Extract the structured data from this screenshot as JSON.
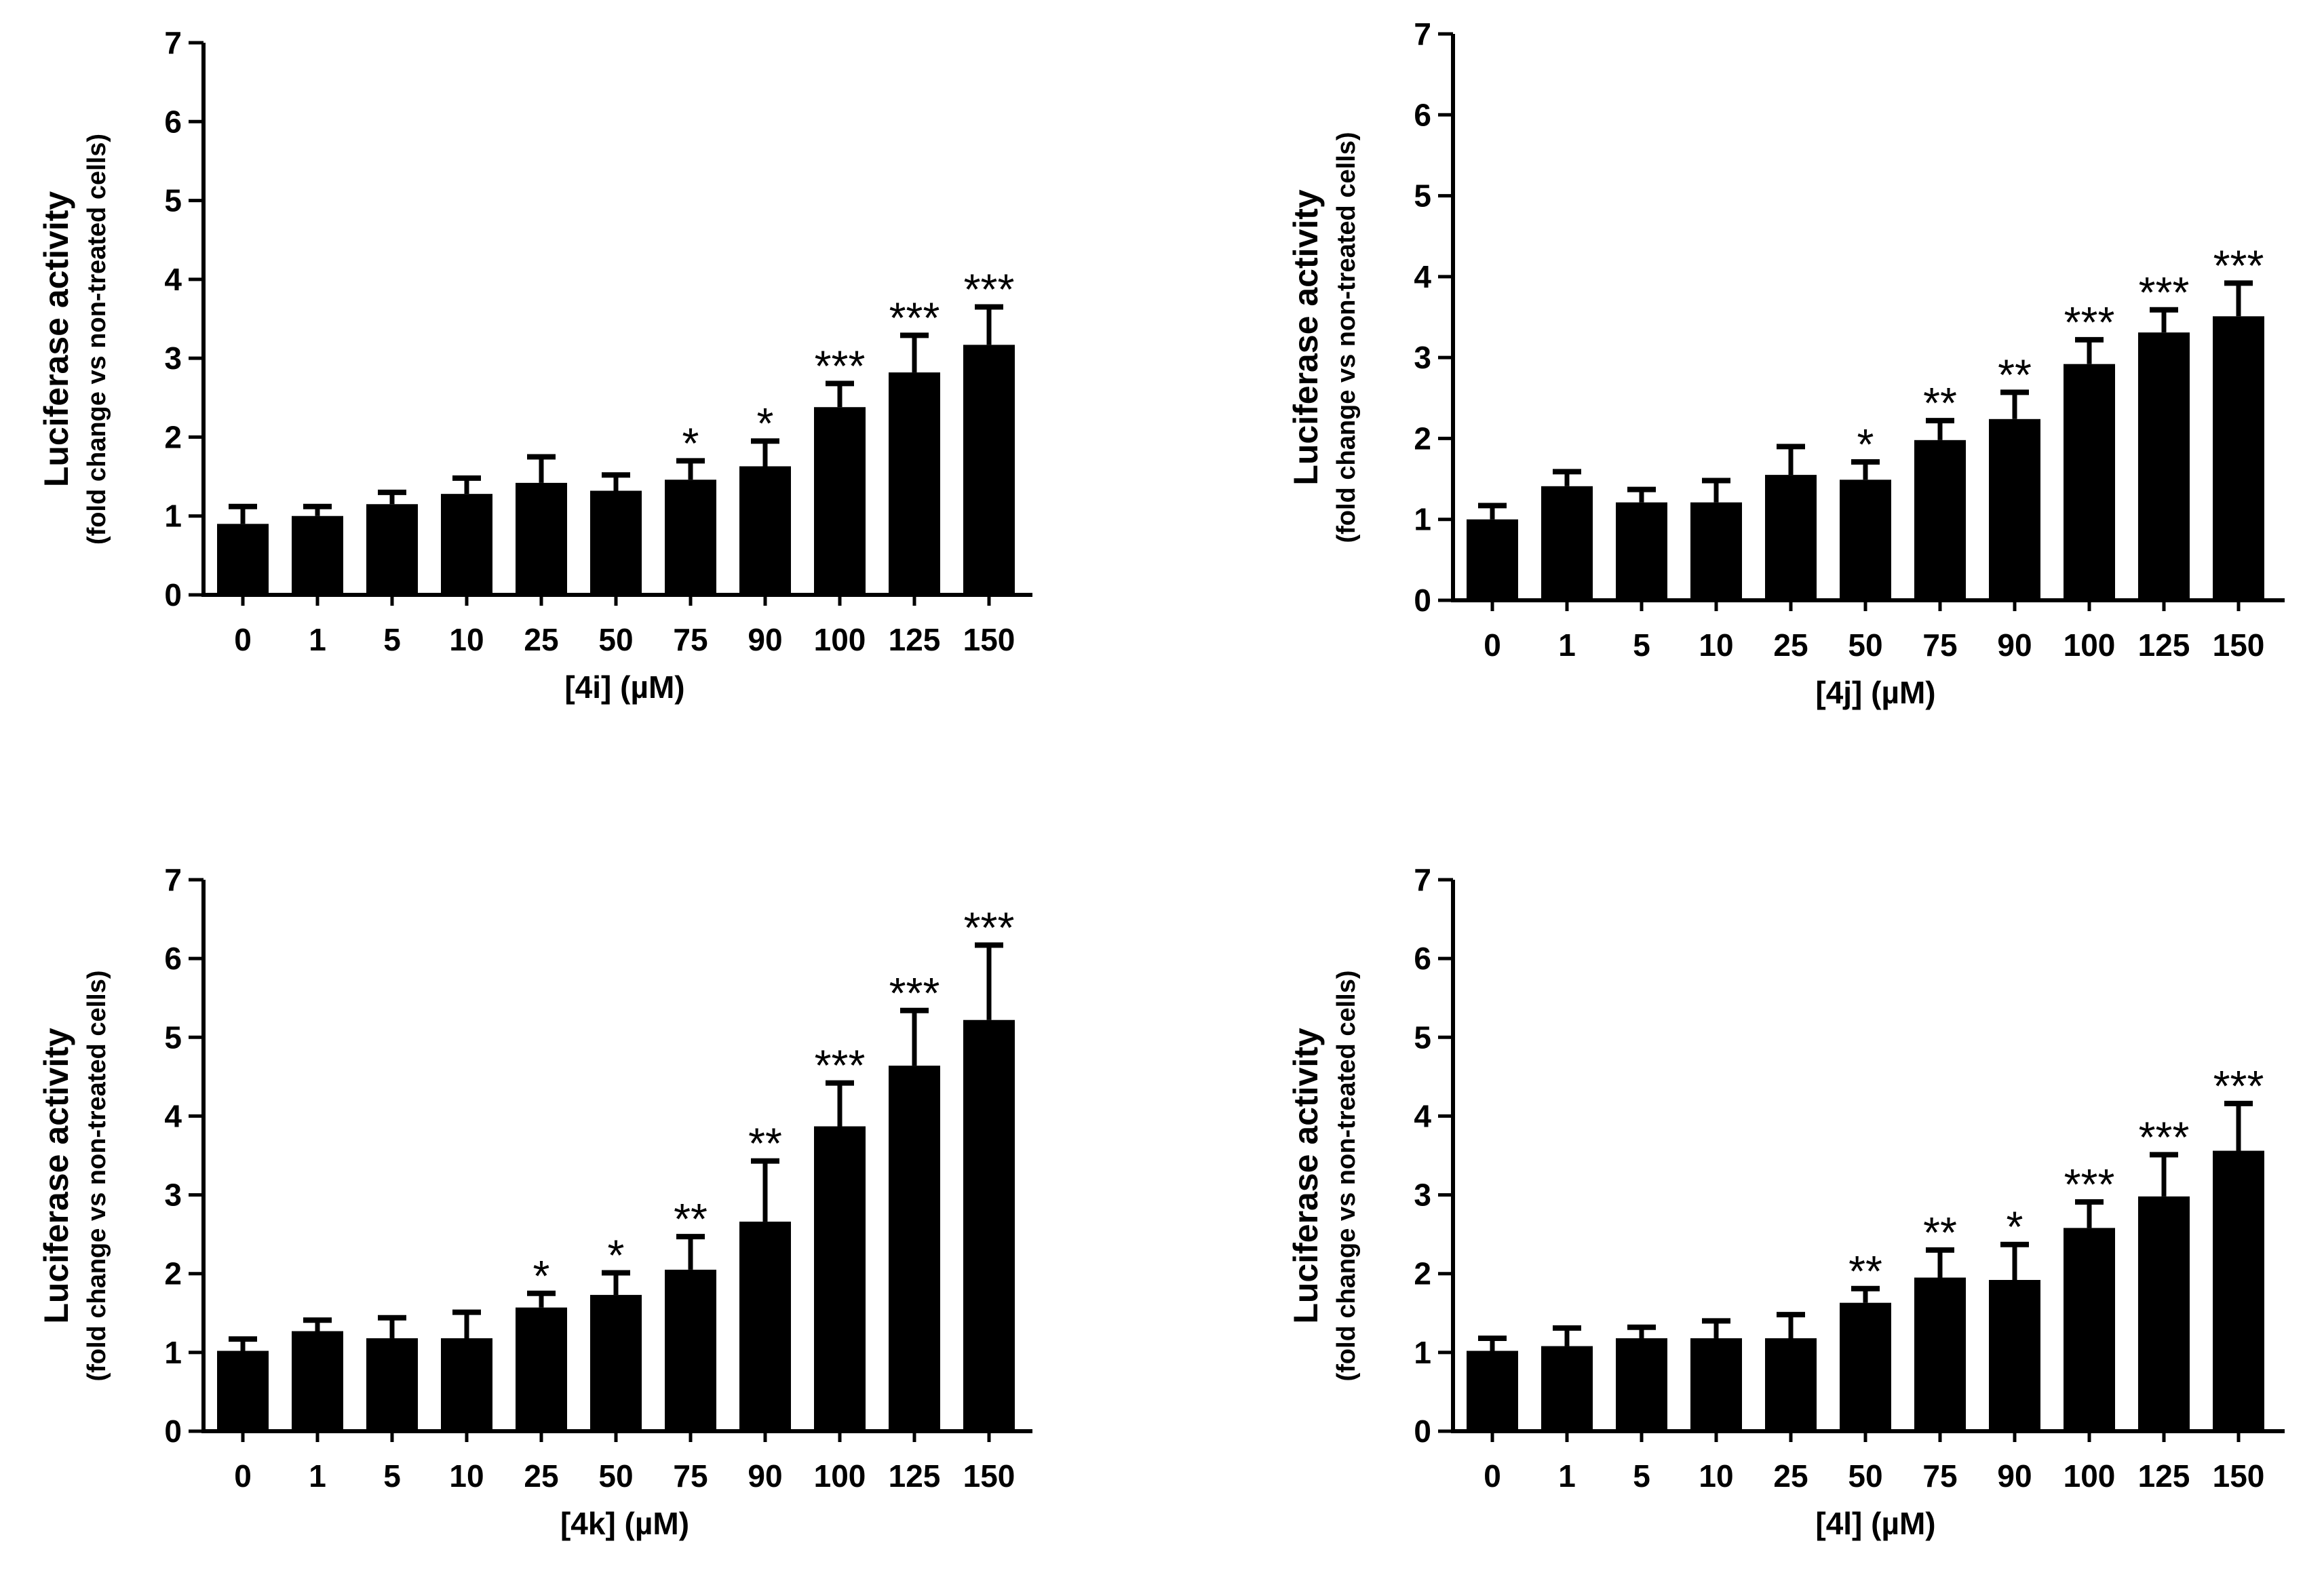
{
  "chart_data": [
    {
      "type": "bar",
      "id": "4i",
      "categories": [
        "0",
        "1",
        "5",
        "10",
        "25",
        "50",
        "75",
        "90",
        "100",
        "125",
        "150"
      ],
      "values": [
        0.9,
        1.0,
        1.15,
        1.28,
        1.42,
        1.32,
        1.46,
        1.63,
        2.38,
        2.82,
        3.17
      ],
      "errors": [
        0.22,
        0.12,
        0.15,
        0.2,
        0.33,
        0.2,
        0.24,
        0.32,
        0.3,
        0.47,
        0.48
      ],
      "significance": [
        "",
        "",
        "",
        "",
        "",
        "",
        "*",
        "*",
        "***",
        "***",
        "***"
      ],
      "xlabel": "[4i] (µM)",
      "ylabel": "Luciferase activity",
      "ylabel_sub": "(fold change vs non-treated cells)",
      "yticks": [
        "0",
        "1",
        "2",
        "3",
        "4",
        "5",
        "6",
        "7"
      ],
      "ylim": [
        0,
        7
      ]
    },
    {
      "type": "bar",
      "id": "4j",
      "categories": [
        "0",
        "1",
        "5",
        "10",
        "25",
        "50",
        "75",
        "90",
        "100",
        "125",
        "150"
      ],
      "values": [
        1.0,
        1.41,
        1.21,
        1.21,
        1.55,
        1.49,
        1.98,
        2.24,
        2.92,
        3.31,
        3.51
      ],
      "errors": [
        0.17,
        0.18,
        0.16,
        0.27,
        0.35,
        0.22,
        0.24,
        0.33,
        0.3,
        0.28,
        0.41
      ],
      "significance": [
        "",
        "",
        "",
        "",
        "",
        "*",
        "**",
        "**",
        "***",
        "***",
        "***"
      ],
      "xlabel": "[4j] (µM)",
      "ylabel": "Luciferase activity",
      "ylabel_sub": "(fold change vs non-treated cells)",
      "yticks": [
        "0",
        "1",
        "2",
        "3",
        "4",
        "5",
        "6",
        "7"
      ],
      "ylim": [
        0,
        7
      ]
    },
    {
      "type": "bar",
      "id": "4k",
      "categories": [
        "0",
        "1",
        "5",
        "10",
        "25",
        "50",
        "75",
        "90",
        "100",
        "125",
        "150"
      ],
      "values": [
        1.02,
        1.27,
        1.18,
        1.18,
        1.57,
        1.73,
        2.05,
        2.66,
        3.87,
        4.64,
        5.22
      ],
      "errors": [
        0.15,
        0.14,
        0.26,
        0.33,
        0.18,
        0.28,
        0.42,
        0.77,
        0.55,
        0.7,
        0.95
      ],
      "significance": [
        "",
        "",
        "",
        "",
        "*",
        "*",
        "**",
        "**",
        "***",
        "***",
        "***"
      ],
      "xlabel": "[4k] (µM)",
      "ylabel": "Luciferase activity",
      "ylabel_sub": "(fold change vs non-treated cells)",
      "yticks": [
        "0",
        "1",
        "2",
        "3",
        "4",
        "5",
        "6",
        "7"
      ],
      "ylim": [
        0,
        7
      ]
    },
    {
      "type": "bar",
      "id": "4l",
      "categories": [
        "0",
        "1",
        "5",
        "10",
        "25",
        "50",
        "75",
        "90",
        "100",
        "125",
        "150"
      ],
      "values": [
        1.02,
        1.08,
        1.18,
        1.18,
        1.18,
        1.63,
        1.95,
        1.92,
        2.58,
        2.98,
        3.56
      ],
      "errors": [
        0.16,
        0.23,
        0.14,
        0.22,
        0.3,
        0.18,
        0.35,
        0.45,
        0.33,
        0.53,
        0.6
      ],
      "significance": [
        "",
        "",
        "",
        "",
        "",
        "**",
        "**",
        "*",
        "***",
        "***",
        "***"
      ],
      "xlabel": "[4l] (µM)",
      "ylabel": "Luciferase activity",
      "ylabel_sub": "(fold change vs non-treated cells)",
      "yticks": [
        "0",
        "1",
        "2",
        "3",
        "4",
        "5",
        "6",
        "7"
      ],
      "ylim": [
        0,
        7
      ]
    }
  ]
}
